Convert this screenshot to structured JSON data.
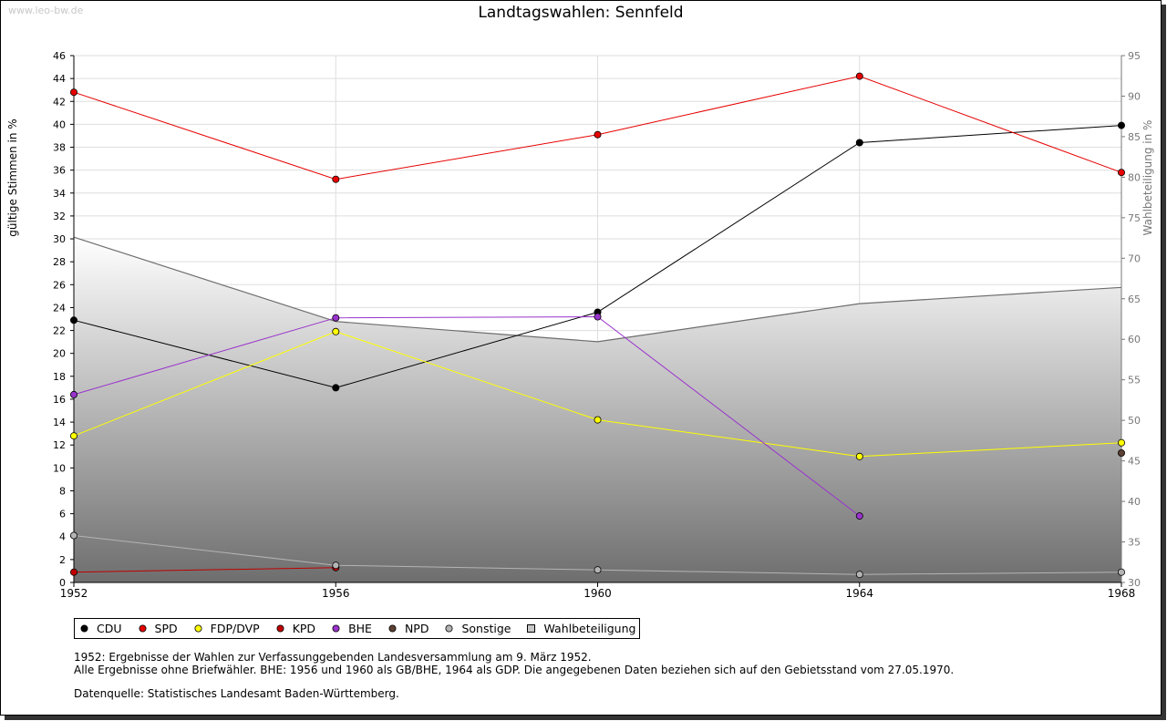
{
  "watermark": "www.leo-bw.de",
  "title": "Landtagswahlen: Sennfeld",
  "chart_data": {
    "type": "line",
    "title": "Landtagswahlen: Sennfeld",
    "x": [
      1952,
      1956,
      1960,
      1964,
      1968
    ],
    "x_ticks": [
      "1952",
      "1956",
      "1960",
      "1964",
      "1968"
    ],
    "ylabel": "gültige Stimmen in %",
    "ylabel_right": "Wahlbeteiligung in %",
    "ylim": [
      0,
      46
    ],
    "ylim_right": [
      30,
      95
    ],
    "y_ticks": [
      "0",
      "2",
      "4",
      "6",
      "8",
      "10",
      "12",
      "14",
      "16",
      "18",
      "20",
      "22",
      "24",
      "26",
      "28",
      "30",
      "32",
      "34",
      "36",
      "38",
      "40",
      "42",
      "44",
      "46"
    ],
    "y_ticks_right": [
      "30",
      "35",
      "40",
      "45",
      "50",
      "55",
      "60",
      "65",
      "70",
      "75",
      "80",
      "85",
      "90",
      "95"
    ],
    "series": [
      {
        "name": "CDU",
        "color": "#000000",
        "values": [
          22.9,
          17.0,
          23.6,
          38.4,
          39.9
        ]
      },
      {
        "name": "SPD",
        "color": "#e60000",
        "values": [
          42.8,
          35.2,
          39.1,
          44.2,
          35.8
        ]
      },
      {
        "name": "FDP/DVP",
        "color": "#ffff00",
        "values": [
          12.8,
          21.9,
          14.2,
          11.0,
          12.2
        ]
      },
      {
        "name": "KPD",
        "color": "#c00000",
        "values": [
          0.9,
          1.3,
          null,
          null,
          null
        ]
      },
      {
        "name": "BHE",
        "color": "#9933cc",
        "values": [
          16.4,
          23.1,
          23.2,
          5.8,
          null
        ]
      },
      {
        "name": "NPD",
        "color": "#5c4033",
        "values": [
          null,
          null,
          null,
          null,
          11.3
        ]
      },
      {
        "name": "Sonstige",
        "color": "#b4b4b4",
        "values": [
          4.1,
          1.5,
          1.1,
          0.7,
          0.9
        ]
      }
    ],
    "turnout": {
      "name": "Wahlbeteiligung",
      "axis": "right",
      "values": [
        72.6,
        62.2,
        59.7,
        64.4,
        66.4
      ]
    },
    "legend": [
      "CDU",
      "SPD",
      "FDP/DVP",
      "KPD",
      "BHE",
      "NPD",
      "Sonstige",
      "Wahlbeteiligung"
    ]
  },
  "notes": {
    "line1": "1952: Ergebnisse der Wahlen zur Verfassunggebenden Landesversammlung am 9. März 1952.",
    "line2": "Alle Ergebnisse ohne Briefwähler. BHE: 1956 und 1960 als GB/BHE, 1964 als GDP. Die angegebenen Daten beziehen sich auf den Gebietsstand vom 27.05.1970.",
    "source": "Datenquelle: Statistisches Landesamt Baden-Württemberg."
  }
}
